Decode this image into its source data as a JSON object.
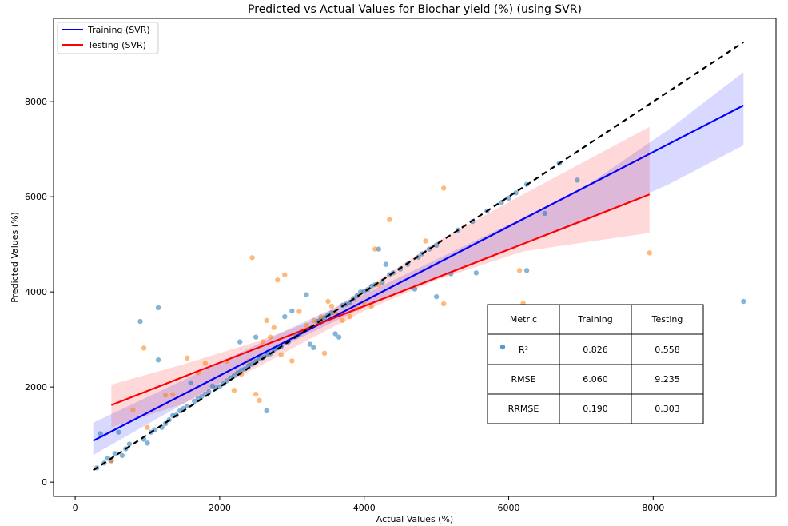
{
  "chart_data": {
    "type": "scatter",
    "title": "Predicted vs Actual Values for Biochar yield (%) (using SVR)",
    "xlabel": "Actual Values (%)",
    "ylabel": "Predicted Values (%)",
    "xlim": [
      -300,
      9700
    ],
    "ylim": [
      -300,
      9750
    ],
    "x_ticks": [
      0,
      2000,
      4000,
      6000,
      8000
    ],
    "y_ticks": [
      0,
      2000,
      4000,
      6000,
      8000
    ],
    "x_tick_labels": [
      "0",
      "2000",
      "4000",
      "6000",
      "8000"
    ],
    "y_tick_labels": [
      "0",
      "2000",
      "4000",
      "6000",
      "8000"
    ],
    "legend_position": "top-left",
    "legend": [
      {
        "label": "Training (SVR)",
        "color": "#0000ff"
      },
      {
        "label": "Testing (SVR)",
        "color": "#ff0000"
      }
    ],
    "colors": {
      "training_points": "#1f77b4",
      "testing_points": "#ff7f0e",
      "training_line": "#0000ff",
      "testing_line": "#ff0000",
      "identity_line": "#000000"
    },
    "identity_line": {
      "x": [
        250,
        9250
      ],
      "y": [
        250,
        9250
      ]
    },
    "series": [
      {
        "name": "Training (SVR)",
        "fit_line": {
          "x": [
            250,
            9250
          ],
          "y": [
            870,
            7920
          ]
        },
        "band": {
          "x": [
            250,
            1500,
            3000,
            4000,
            5500,
            7000,
            8200,
            9250
          ],
          "upper": [
            1250,
            2150,
            3250,
            3950,
            5050,
            6150,
            7400,
            8620
          ],
          "lower": [
            570,
            1650,
            2950,
            3680,
            4600,
            5450,
            6250,
            7080
          ]
        },
        "points": [
          [
            300,
            300
          ],
          [
            350,
            1020
          ],
          [
            400,
            400
          ],
          [
            450,
            500
          ],
          [
            500,
            450
          ],
          [
            550,
            600
          ],
          [
            600,
            1050
          ],
          [
            650,
            560
          ],
          [
            700,
            700
          ],
          [
            750,
            800
          ],
          [
            900,
            3380
          ],
          [
            950,
            900
          ],
          [
            1000,
            820
          ],
          [
            1050,
            1050
          ],
          [
            1100,
            1100
          ],
          [
            1150,
            2570
          ],
          [
            1150,
            3670
          ],
          [
            1200,
            1150
          ],
          [
            1250,
            1230
          ],
          [
            1300,
            1310
          ],
          [
            1350,
            1400
          ],
          [
            1400,
            1410
          ],
          [
            1450,
            1500
          ],
          [
            1500,
            1550
          ],
          [
            1550,
            1600
          ],
          [
            1600,
            2090
          ],
          [
            1650,
            1700
          ],
          [
            1700,
            1760
          ],
          [
            1750,
            1800
          ],
          [
            1800,
            1850
          ],
          [
            1850,
            1900
          ],
          [
            1900,
            2020
          ],
          [
            1950,
            1980
          ],
          [
            2000,
            2010
          ],
          [
            2050,
            2070
          ],
          [
            2100,
            2130
          ],
          [
            2150,
            2190
          ],
          [
            2200,
            2240
          ],
          [
            2250,
            2300
          ],
          [
            2280,
            2950
          ],
          [
            2300,
            2350
          ],
          [
            2350,
            2380
          ],
          [
            2400,
            2450
          ],
          [
            2450,
            2480
          ],
          [
            2500,
            2540
          ],
          [
            2500,
            3050
          ],
          [
            2550,
            2600
          ],
          [
            2600,
            2620
          ],
          [
            2650,
            1500
          ],
          [
            2650,
            2680
          ],
          [
            2700,
            2700
          ],
          [
            2750,
            2780
          ],
          [
            2800,
            2820
          ],
          [
            2850,
            2850
          ],
          [
            2900,
            3480
          ],
          [
            2950,
            2950
          ],
          [
            3000,
            3600
          ],
          [
            3050,
            3060
          ],
          [
            3100,
            3110
          ],
          [
            3150,
            3170
          ],
          [
            3200,
            3940
          ],
          [
            3250,
            2900
          ],
          [
            3300,
            2830
          ],
          [
            3350,
            3380
          ],
          [
            3400,
            3420
          ],
          [
            3450,
            3460
          ],
          [
            3500,
            3510
          ],
          [
            3550,
            3560
          ],
          [
            3600,
            3120
          ],
          [
            3650,
            3050
          ],
          [
            3700,
            3720
          ],
          [
            3750,
            3740
          ],
          [
            3800,
            3780
          ],
          [
            3850,
            3860
          ],
          [
            3900,
            3920
          ],
          [
            3950,
            4000
          ],
          [
            4000,
            4010
          ],
          [
            4050,
            4050
          ],
          [
            4100,
            4120
          ],
          [
            4150,
            4150
          ],
          [
            4200,
            4900
          ],
          [
            4250,
            4200
          ],
          [
            4300,
            4580
          ],
          [
            4350,
            4360
          ],
          [
            4400,
            4400
          ],
          [
            4500,
            4480
          ],
          [
            4600,
            4580
          ],
          [
            4700,
            4060
          ],
          [
            4750,
            4730
          ],
          [
            4800,
            4800
          ],
          [
            4900,
            4900
          ],
          [
            5000,
            3900
          ],
          [
            5000,
            4980
          ],
          [
            5200,
            4380
          ],
          [
            5300,
            5300
          ],
          [
            5500,
            5480
          ],
          [
            5550,
            4400
          ],
          [
            5700,
            5700
          ],
          [
            5900,
            5880
          ],
          [
            6000,
            5970
          ],
          [
            6100,
            6080
          ],
          [
            6250,
            6260
          ],
          [
            6250,
            4450
          ],
          [
            6500,
            5650
          ],
          [
            6700,
            6700
          ],
          [
            6950,
            6350
          ],
          [
            9250,
            3800
          ]
        ]
      },
      {
        "name": "Testing (SVR)",
        "fit_line": {
          "x": [
            500,
            7950
          ],
          "y": [
            1620,
            6050
          ]
        },
        "band": {
          "x": [
            500,
            1500,
            2500,
            3300,
            4000,
            5000,
            6200,
            7950
          ],
          "upper": [
            2050,
            2480,
            2950,
            3400,
            4050,
            5050,
            6050,
            7470
          ],
          "lower": [
            1150,
            1650,
            2400,
            3050,
            3600,
            4250,
            4850,
            5240
          ]
        },
        "points": [
          [
            500,
            450
          ],
          [
            800,
            1520
          ],
          [
            950,
            2820
          ],
          [
            1000,
            1150
          ],
          [
            1250,
            1830
          ],
          [
            1350,
            1840
          ],
          [
            1550,
            2610
          ],
          [
            1700,
            2300
          ],
          [
            1800,
            2500
          ],
          [
            2100,
            2540
          ],
          [
            2200,
            1930
          ],
          [
            2300,
            2270
          ],
          [
            2400,
            2550
          ],
          [
            2450,
            4720
          ],
          [
            2500,
            1850
          ],
          [
            2550,
            1720
          ],
          [
            2600,
            2950
          ],
          [
            2650,
            3400
          ],
          [
            2700,
            3050
          ],
          [
            2750,
            3250
          ],
          [
            2800,
            4250
          ],
          [
            2850,
            2680
          ],
          [
            2900,
            4360
          ],
          [
            3000,
            2550
          ],
          [
            3100,
            3590
          ],
          [
            3200,
            3300
          ],
          [
            3300,
            3400
          ],
          [
            3400,
            3480
          ],
          [
            3450,
            2710
          ],
          [
            3500,
            3800
          ],
          [
            3550,
            3700
          ],
          [
            3600,
            3550
          ],
          [
            3650,
            3520
          ],
          [
            3700,
            3400
          ],
          [
            3800,
            3480
          ],
          [
            3900,
            3650
          ],
          [
            4000,
            3780
          ],
          [
            4100,
            3700
          ],
          [
            4150,
            4900
          ],
          [
            4200,
            4150
          ],
          [
            4350,
            5520
          ],
          [
            4850,
            5070
          ],
          [
            5100,
            6180
          ],
          [
            5100,
            3750
          ],
          [
            6150,
            4450
          ],
          [
            6200,
            3760
          ],
          [
            7950,
            4820
          ]
        ]
      }
    ],
    "metrics_table": {
      "headers": [
        "Metric",
        "Training",
        "Testing"
      ],
      "rows": [
        [
          "R²",
          "0.826",
          "0.558"
        ],
        [
          "RMSE",
          "6.060",
          "9.235"
        ],
        [
          "RRMSE",
          "0.190",
          "0.303"
        ]
      ]
    }
  }
}
